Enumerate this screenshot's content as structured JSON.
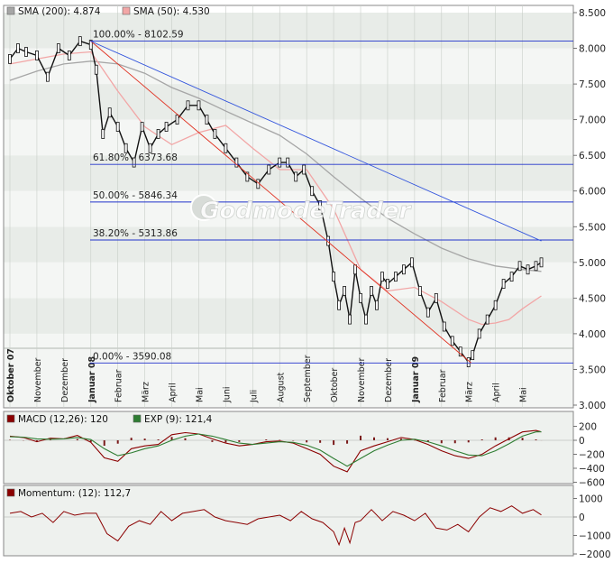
{
  "watermark": "GodmodeTrader",
  "chart_data": [
    {
      "type": "line",
      "panel": "price",
      "legend": [
        {
          "label": "SMA (200): 4.874",
          "color": "#a6a6a6"
        },
        {
          "label": "SMA (50): 4.530",
          "color": "#f2a6a6"
        }
      ],
      "ylim": [
        3.0,
        8.5
      ],
      "yticks": [
        "3.000",
        "3.500",
        "4.000",
        "4.500",
        "5.000",
        "5.500",
        "6.000",
        "6.500",
        "7.000",
        "7.500",
        "8.000",
        "8.500"
      ],
      "ytick_values": [
        3.0,
        3.5,
        4.0,
        4.5,
        5.0,
        5.5,
        6.0,
        6.5,
        7.0,
        7.5,
        8.0,
        8.5
      ],
      "x_month_labels": [
        {
          "label": "Oktober 07",
          "t": 0,
          "bold": true
        },
        {
          "label": "November",
          "t": 1
        },
        {
          "label": "Dezember",
          "t": 2
        },
        {
          "label": "Januar 08",
          "t": 3,
          "bold": true
        },
        {
          "label": "Februar",
          "t": 4
        },
        {
          "label": "März",
          "t": 5
        },
        {
          "label": "April",
          "t": 6
        },
        {
          "label": "Mai",
          "t": 7
        },
        {
          "label": "Juni",
          "t": 8
        },
        {
          "label": "Juli",
          "t": 9
        },
        {
          "label": "August",
          "t": 10
        },
        {
          "label": "September",
          "t": 11
        },
        {
          "label": "Oktober",
          "t": 12
        },
        {
          "label": "November",
          "t": 13
        },
        {
          "label": "Dezember",
          "t": 14
        },
        {
          "label": "Januar 09",
          "t": 15,
          "bold": true
        },
        {
          "label": "Februar",
          "t": 16
        },
        {
          "label": "März",
          "t": 17
        },
        {
          "label": "April",
          "t": 18
        },
        {
          "label": "Mai",
          "t": 19
        }
      ],
      "fib_levels": [
        {
          "label": "100.00% - 8102.59",
          "value": 8.10259
        },
        {
          "label": "61.80% - 6373.68",
          "value": 6.37368
        },
        {
          "label": "50.00% - 5846.34",
          "value": 5.84634
        },
        {
          "label": "38.20% - 5313.86",
          "value": 5.31386
        },
        {
          "label": "0.00% - 3590.08",
          "value": 3.59008
        }
      ],
      "trendlines": [
        {
          "name": "red",
          "color": "#e03020",
          "from": [
            3.0,
            8.1
          ],
          "to": [
            17.1,
            3.59
          ]
        },
        {
          "name": "blue",
          "color": "#3355dd",
          "from": [
            3.0,
            8.1
          ],
          "to": [
            19.7,
            5.3
          ]
        }
      ],
      "price_series": {
        "name": "Kurs",
        "x": [
          0,
          0.3,
          0.6,
          1.0,
          1.4,
          1.8,
          2.2,
          2.6,
          3.0,
          3.2,
          3.45,
          3.7,
          4.0,
          4.3,
          4.6,
          4.9,
          5.2,
          5.5,
          5.8,
          6.2,
          6.6,
          7.0,
          7.3,
          7.6,
          8.0,
          8.4,
          8.8,
          9.2,
          9.6,
          10.0,
          10.3,
          10.6,
          10.9,
          11.2,
          11.5,
          11.8,
          12.0,
          12.2,
          12.4,
          12.6,
          12.8,
          13.0,
          13.2,
          13.4,
          13.6,
          13.8,
          14.0,
          14.3,
          14.6,
          14.9,
          15.2,
          15.5,
          15.8,
          16.1,
          16.4,
          16.7,
          17.0,
          17.15,
          17.4,
          17.7,
          18.0,
          18.3,
          18.6,
          18.9,
          19.2,
          19.5,
          19.7
        ],
        "y": [
          7.85,
          8.0,
          7.95,
          7.9,
          7.6,
          8.0,
          7.9,
          8.1,
          8.05,
          7.7,
          6.8,
          7.1,
          6.9,
          6.6,
          6.4,
          6.9,
          6.6,
          6.8,
          6.9,
          7.0,
          7.2,
          7.2,
          7.0,
          6.8,
          6.6,
          6.4,
          6.2,
          6.1,
          6.3,
          6.4,
          6.4,
          6.2,
          6.3,
          6.0,
          5.8,
          5.3,
          4.8,
          4.4,
          4.6,
          4.2,
          4.9,
          4.5,
          4.2,
          4.6,
          4.4,
          4.8,
          4.7,
          4.8,
          4.9,
          5.0,
          4.6,
          4.3,
          4.5,
          4.1,
          3.9,
          3.75,
          3.6,
          3.7,
          4.0,
          4.2,
          4.4,
          4.7,
          4.8,
          4.95,
          4.9,
          4.95,
          5.0
        ]
      },
      "sma_series": [
        {
          "name": "SMA (200)",
          "color": "#a6a6a6",
          "x": [
            0,
            1,
            2,
            3,
            4,
            5,
            6,
            7,
            8,
            9,
            10,
            11,
            12,
            13,
            14,
            15,
            16,
            17,
            18,
            19,
            19.7
          ],
          "y": [
            7.55,
            7.68,
            7.78,
            7.82,
            7.78,
            7.65,
            7.45,
            7.3,
            7.12,
            6.95,
            6.78,
            6.52,
            6.2,
            5.9,
            5.62,
            5.4,
            5.2,
            5.05,
            4.95,
            4.9,
            4.874
          ]
        },
        {
          "name": "SMA (50)",
          "color": "#f2a6a6",
          "x": [
            0,
            1,
            2,
            3,
            4,
            5,
            6,
            7,
            8,
            9,
            10,
            11,
            12,
            13,
            14,
            15,
            16,
            17,
            17.5,
            18,
            18.5,
            19,
            19.7
          ],
          "y": [
            7.78,
            7.85,
            7.92,
            7.95,
            7.4,
            6.9,
            6.65,
            6.82,
            6.92,
            6.6,
            6.3,
            6.3,
            5.75,
            4.9,
            4.6,
            4.65,
            4.45,
            4.2,
            4.13,
            4.15,
            4.2,
            4.35,
            4.53
          ]
        }
      ]
    },
    {
      "type": "line",
      "panel": "macd",
      "legend": [
        {
          "label": "MACD (12,26): 120",
          "color": "#8b0000"
        },
        {
          "label": "EXP (9): 121,4",
          "color": "#2e7d32"
        }
      ],
      "ylim": [
        -750,
        340
      ],
      "yticks": [
        "200",
        "0",
        "−200",
        "−400",
        "−600"
      ],
      "ytick_values": [
        200,
        0,
        -200,
        -400,
        -600
      ],
      "series": [
        {
          "name": "MACD (12,26)",
          "color": "#8b0000",
          "x": [
            0,
            0.5,
            1,
            1.5,
            2,
            2.5,
            3,
            3.5,
            4,
            4.5,
            5,
            5.5,
            6,
            6.5,
            7,
            7.5,
            8,
            8.5,
            9,
            9.5,
            10,
            10.5,
            11,
            11.5,
            12,
            12.5,
            13,
            13.5,
            14,
            14.5,
            15,
            15.5,
            16,
            16.5,
            17,
            17.5,
            18,
            18.5,
            19,
            19.5,
            19.7
          ],
          "y": [
            60,
            40,
            -20,
            30,
            20,
            70,
            -30,
            -250,
            -300,
            -120,
            -80,
            -60,
            80,
            110,
            90,
            20,
            -40,
            -80,
            -60,
            -20,
            -10,
            -40,
            -120,
            -200,
            -370,
            -450,
            -150,
            -80,
            -20,
            40,
            10,
            -60,
            -150,
            -220,
            -260,
            -200,
            -80,
            20,
            120,
            140,
            120
          ]
        },
        {
          "name": "EXP (9)",
          "color": "#2e7d32",
          "x": [
            0,
            0.5,
            1,
            1.5,
            2,
            2.5,
            3,
            3.5,
            4,
            4.5,
            5,
            5.5,
            6,
            6.5,
            7,
            7.5,
            8,
            8.5,
            9,
            9.5,
            10,
            10.5,
            11,
            11.5,
            12,
            12.5,
            13,
            13.5,
            14,
            14.5,
            15,
            15.5,
            16,
            16.5,
            17,
            17.5,
            18,
            18.5,
            19,
            19.5,
            19.7
          ],
          "y": [
            50,
            45,
            20,
            15,
            20,
            40,
            10,
            -120,
            -220,
            -180,
            -120,
            -80,
            0,
            60,
            90,
            60,
            10,
            -40,
            -60,
            -40,
            -20,
            -30,
            -70,
            -140,
            -260,
            -370,
            -260,
            -150,
            -70,
            0,
            15,
            -20,
            -80,
            -150,
            -210,
            -220,
            -150,
            -50,
            60,
            120,
            121.4
          ]
        }
      ]
    },
    {
      "type": "line",
      "panel": "momentum",
      "legend": [
        {
          "label": "Momentum: (12): 112,7",
          "color": "#8b0000"
        }
      ],
      "ylim": [
        -2200,
        1300
      ],
      "yticks": [
        "1000",
        "0",
        "−1000",
        "−2000"
      ],
      "ytick_values": [
        1000,
        0,
        -1000,
        -2000
      ],
      "series": [
        {
          "name": "Momentum (12)",
          "color": "#8b0000",
          "x": [
            0,
            0.4,
            0.8,
            1.2,
            1.6,
            2,
            2.4,
            2.8,
            3.2,
            3.6,
            4,
            4.4,
            4.8,
            5.2,
            5.6,
            6,
            6.4,
            6.8,
            7.2,
            7.6,
            8,
            8.4,
            8.8,
            9.2,
            9.6,
            10,
            10.4,
            10.8,
            11.2,
            11.6,
            12,
            12.2,
            12.4,
            12.6,
            12.8,
            13,
            13.4,
            13.8,
            14.2,
            14.6,
            15,
            15.4,
            15.8,
            16.2,
            16.6,
            17,
            17.4,
            17.8,
            18.2,
            18.6,
            19,
            19.4,
            19.7
          ],
          "y": [
            200,
            300,
            0,
            200,
            -300,
            300,
            100,
            200,
            200,
            -900,
            -1300,
            -500,
            -200,
            -400,
            300,
            -200,
            200,
            300,
            400,
            0,
            -200,
            -300,
            -400,
            -100,
            0,
            100,
            -200,
            300,
            -100,
            -300,
            -800,
            -1500,
            -600,
            -1400,
            -300,
            -200,
            400,
            -200,
            300,
            100,
            -200,
            200,
            -600,
            -700,
            -400,
            -800,
            0,
            500,
            300,
            600,
            200,
            400,
            112.7
          ]
        }
      ]
    }
  ]
}
